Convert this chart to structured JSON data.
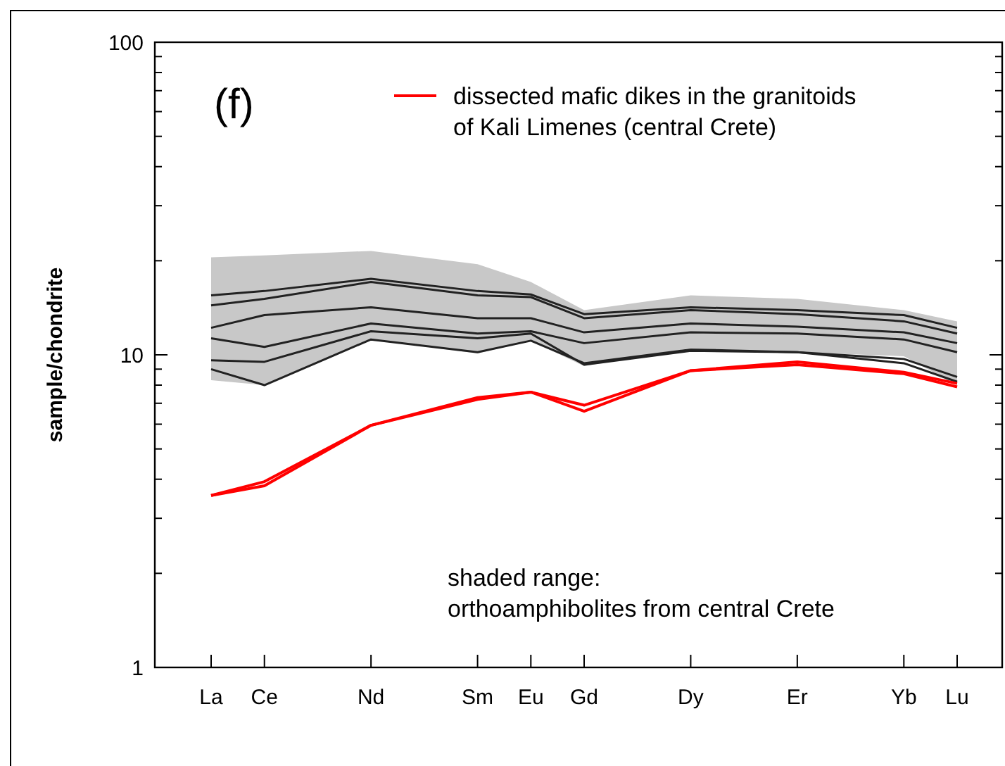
{
  "chart_data": {
    "type": "line",
    "ylabel": "sample/chondrite",
    "log": true,
    "legend": "top right",
    "marker": "none",
    "line_style": "solid",
    "categories": [
      "La",
      "Ce",
      null,
      "Nd",
      null,
      "Sm",
      "Eu",
      "Gd",
      null,
      "Dy",
      null,
      "Er",
      null,
      "Yb",
      "Lu"
    ],
    "ylim": [
      1,
      100
    ],
    "yticks": [
      1,
      {
        "value": 2,
        "label": null
      },
      {
        "value": 3,
        "label": null
      },
      {
        "value": 4,
        "label": null
      },
      {
        "value": 5,
        "label": null
      },
      {
        "value": 6,
        "label": null
      },
      {
        "value": 7,
        "label": null
      },
      {
        "value": 8,
        "label": null
      },
      {
        "value": 9,
        "label": null
      },
      10,
      {
        "value": 20,
        "label": null
      },
      {
        "value": 30,
        "label": null
      },
      {
        "value": 40,
        "label": null
      },
      {
        "value": 50,
        "label": null
      },
      {
        "value": 60,
        "label": null
      },
      {
        "value": 70,
        "label": null
      },
      {
        "value": 80,
        "label": null
      },
      {
        "value": 90,
        "label": null
      },
      100
    ],
    "annotations": [
      "(f)",
      "shaded range:\northoamphibolites from central Crete"
    ],
    "series": [
      {
        "color": "#222222",
        "x": [
          "La",
          "Ce",
          "Nd",
          "Sm",
          "Eu",
          "Gd",
          "Dy",
          "Er",
          "Yb",
          "Lu"
        ],
        "values": [
          15.5,
          16.0,
          17.5,
          16.0,
          15.6,
          13.5,
          14.2,
          13.9,
          13.4,
          12.2
        ],
        "lower": [
          8.3,
          8.0,
          11.2,
          10.1,
          11.1,
          9.2,
          10.5,
          10.2,
          9.9,
          8.0
        ],
        "upper": [
          20.5,
          20.8,
          21.5,
          19.5,
          17.1,
          13.9,
          15.5,
          15.1,
          13.9,
          12.8
        ]
      },
      {
        "color": "#222222",
        "x": [
          "La",
          "Ce",
          "Nd",
          "Sm",
          "Eu",
          "Gd",
          "Dy",
          "Er",
          "Yb",
          "Lu"
        ],
        "values": [
          14.4,
          15.1,
          17.1,
          15.5,
          15.3,
          13.1,
          13.9,
          13.5,
          12.8,
          11.7
        ]
      },
      {
        "color": "#222222",
        "x": [
          "La",
          "Ce",
          "Nd",
          "Sm",
          "Eu",
          "Gd",
          "Dy",
          "Er",
          "Yb",
          "Lu"
        ],
        "values": [
          12.2,
          13.4,
          14.2,
          13.1,
          13.1,
          11.8,
          12.6,
          12.3,
          11.8,
          10.9
        ]
      },
      {
        "color": "#222222",
        "x": [
          "La",
          "Ce",
          "Nd",
          "Sm",
          "Eu",
          "Gd",
          "Dy",
          "Er",
          "Yb",
          "Lu"
        ],
        "values": [
          11.3,
          10.6,
          12.6,
          11.7,
          11.9,
          10.9,
          11.8,
          11.7,
          11.2,
          10.2
        ]
      },
      {
        "color": "#222222",
        "x": [
          "La",
          "Ce",
          "Nd",
          "Sm",
          "Eu",
          "Gd",
          "Dy",
          "Er",
          "Yb",
          "Lu"
        ],
        "values": [
          9.6,
          9.5,
          11.9,
          11.3,
          11.7,
          9.3,
          10.3,
          10.2,
          9.7,
          8.5
        ]
      },
      {
        "color": "#222222",
        "x": [
          "La",
          "Ce",
          "Nd",
          "Sm",
          "Eu",
          "Gd",
          "Dy",
          "Er",
          "Yb",
          "Lu"
        ],
        "values": [
          9.0,
          8.0,
          11.2,
          10.2,
          11.1,
          9.4,
          10.4,
          10.2,
          9.4,
          8.2
        ]
      },
      {
        "name": "dissected mafic dikes in the granitoids\nof Kali Limenes (central Crete)",
        "color": "#ff0000",
        "x": [
          "La",
          "Ce",
          "Nd",
          "Sm",
          "Eu",
          "Gd",
          "Dy",
          "Er",
          "Yb",
          "Lu"
        ],
        "values": [
          3.55,
          3.93,
          5.95,
          7.3,
          7.6,
          6.9,
          8.9,
          9.5,
          8.8,
          8.1
        ]
      },
      {
        "color": "#ff0000",
        "x": [
          "La",
          "Ce",
          "Nd",
          "Sm",
          "Eu",
          "Gd",
          "Dy",
          "Er",
          "Yb",
          "Lu"
        ],
        "values": [
          3.55,
          3.81,
          5.95,
          7.2,
          7.6,
          6.6,
          8.9,
          9.3,
          8.7,
          7.9
        ]
      }
    ]
  }
}
